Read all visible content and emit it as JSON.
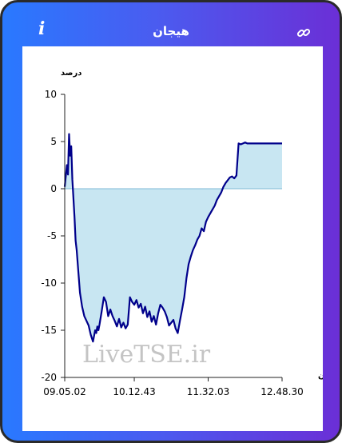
{
  "header": {
    "title": "هیجان",
    "info_icon": "i",
    "link_icon_name": "link-icon"
  },
  "watermark": "LiveTSE.ir",
  "colors": {
    "gradient_start": "#2979ff",
    "gradient_end": "#6b2fd6",
    "line": "#00008b",
    "area": "#c8e6f2"
  },
  "chart_data": {
    "type": "area",
    "ylabel": "درصد",
    "xlabel": "زمان",
    "ylim": [
      -20,
      10
    ],
    "yticks": [
      10,
      5,
      0,
      -5,
      -10,
      -15,
      -20
    ],
    "x_tick_labels": [
      "09.05.02",
      "10.12.43",
      "11.32.03",
      "12.48.30"
    ],
    "x_tick_positions": [
      0,
      0.32,
      0.66,
      1.0
    ],
    "series": [
      {
        "values_x": [
          0,
          0.01,
          0.015,
          0.02,
          0.025,
          0.03,
          0.035,
          0.04,
          0.045,
          0.05,
          0.055,
          0.06,
          0.07,
          0.08,
          0.09,
          0.1,
          0.11,
          0.12,
          0.13,
          0.14,
          0.145,
          0.15,
          0.155,
          0.16,
          0.17,
          0.18,
          0.19,
          0.2,
          0.21,
          0.22,
          0.23,
          0.24,
          0.25,
          0.26,
          0.27,
          0.28,
          0.29,
          0.3,
          0.31,
          0.32,
          0.33,
          0.34,
          0.35,
          0.36,
          0.37,
          0.38,
          0.39,
          0.4,
          0.41,
          0.42,
          0.43,
          0.44,
          0.45,
          0.46,
          0.47,
          0.48,
          0.49,
          0.5,
          0.51,
          0.52,
          0.53,
          0.54,
          0.55,
          0.56,
          0.57,
          0.58,
          0.59,
          0.6,
          0.61,
          0.62,
          0.63,
          0.64,
          0.65,
          0.66,
          0.67,
          0.68,
          0.69,
          0.7,
          0.71,
          0.72,
          0.73,
          0.74,
          0.75,
          0.76,
          0.77,
          0.78,
          0.79,
          0.8,
          0.81,
          0.82,
          0.83,
          0.84,
          0.85,
          0.86,
          0.87,
          0.88,
          0.89,
          0.9,
          0.91,
          0.92,
          0.925,
          0.93,
          0.935,
          0.94,
          0.95,
          0.96,
          0.97,
          0.98,
          0.99,
          1.0
        ],
        "values": [
          0.2,
          2.5,
          1.5,
          5.8,
          3.5,
          4.5,
          1.0,
          -1.0,
          -3.0,
          -5.5,
          -6.5,
          -8.0,
          -11.0,
          -12.5,
          -13.5,
          -14.0,
          -14.5,
          -15.5,
          -16.2,
          -15.0,
          -15.3,
          -14.6,
          -15.0,
          -14.4,
          -13.0,
          -11.5,
          -12.0,
          -13.5,
          -12.8,
          -13.5,
          -14.0,
          -14.6,
          -13.8,
          -14.7,
          -14.2,
          -14.8,
          -14.4,
          -11.5,
          -12.0,
          -12.3,
          -11.8,
          -12.6,
          -12.2,
          -13.2,
          -12.5,
          -13.6,
          -13.0,
          -14.1,
          -13.5,
          -14.4,
          -13.2,
          -12.3,
          -12.6,
          -13.0,
          -13.6,
          -14.5,
          -14.2,
          -13.9,
          -14.8,
          -15.3,
          -14.0,
          -12.8,
          -11.5,
          -9.5,
          -8.0,
          -7.2,
          -6.5,
          -6.0,
          -5.4,
          -5.0,
          -4.2,
          -4.5,
          -3.5,
          -3.0,
          -2.6,
          -2.2,
          -1.8,
          -1.2,
          -0.8,
          -0.4,
          0.2,
          0.6,
          0.9,
          1.2,
          1.3,
          1.1,
          1.4,
          4.8,
          4.7,
          4.8,
          4.9,
          4.8,
          4.8,
          4.8,
          4.8,
          4.8,
          4.8,
          4.8,
          4.8,
          4.8,
          4.8,
          4.8,
          4.8,
          4.8,
          4.8,
          4.8,
          4.8,
          4.8,
          4.8,
          4.8
        ]
      }
    ]
  }
}
